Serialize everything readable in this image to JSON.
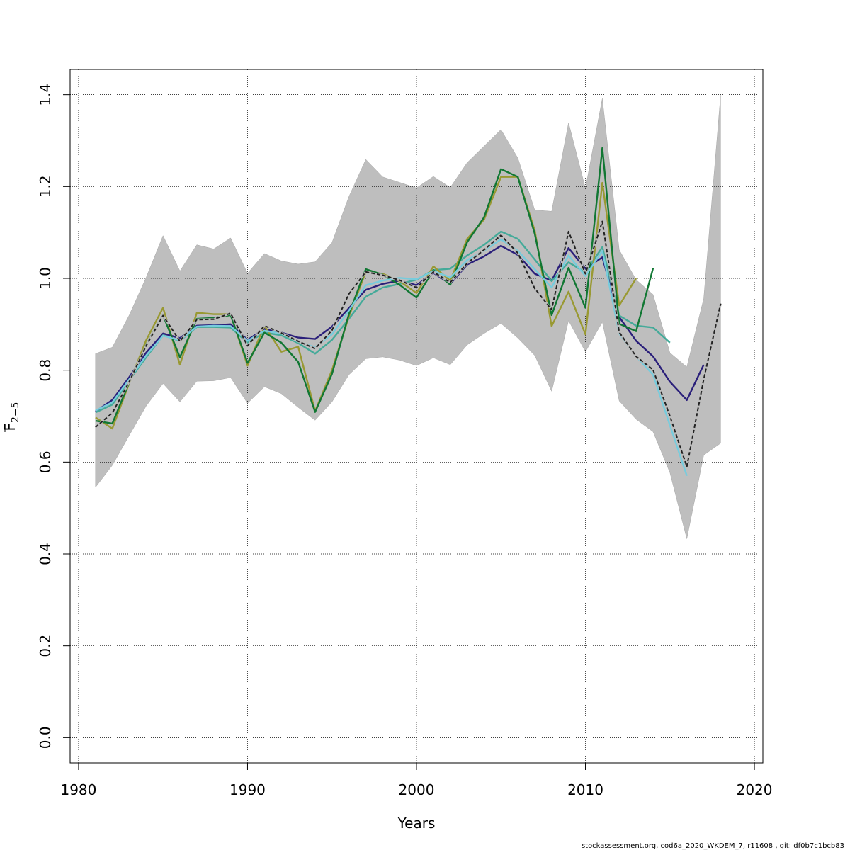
{
  "chart_data": {
    "type": "line",
    "xlabel": "Years",
    "ylabel": {
      "main": "F",
      "sub": "2−5"
    },
    "xlim": [
      1979.5,
      2020.5
    ],
    "ylim": [
      -0.055,
      1.455
    ],
    "xticks": [
      1980,
      1990,
      2000,
      2010,
      2020
    ],
    "yticks": [
      0.0,
      0.2,
      0.4,
      0.6,
      0.8,
      1.0,
      1.2,
      1.4
    ],
    "grid": true,
    "band": {
      "x": [
        1981,
        1982,
        1983,
        1984,
        1985,
        1986,
        1987,
        1988,
        1989,
        1990,
        1991,
        1992,
        1993,
        1994,
        1995,
        1996,
        1997,
        1998,
        1999,
        2000,
        2001,
        2002,
        2003,
        2004,
        2005,
        2006,
        2007,
        2008,
        2009,
        2010,
        2011,
        2012,
        2013,
        2014,
        2015,
        2016,
        2017,
        2018
      ],
      "lower": [
        0.545,
        0.593,
        0.658,
        0.722,
        0.771,
        0.731,
        0.776,
        0.777,
        0.784,
        0.728,
        0.764,
        0.749,
        0.719,
        0.691,
        0.731,
        0.79,
        0.825,
        0.829,
        0.822,
        0.81,
        0.827,
        0.812,
        0.855,
        0.88,
        0.902,
        0.87,
        0.832,
        0.754,
        0.908,
        0.84,
        0.905,
        0.733,
        0.693,
        0.666,
        0.577,
        0.433,
        0.615,
        0.641
      ],
      "upper": [
        0.836,
        0.85,
        0.92,
        1.002,
        1.093,
        1.016,
        1.073,
        1.064,
        1.088,
        1.011,
        1.054,
        1.038,
        1.031,
        1.036,
        1.078,
        1.178,
        1.259,
        1.221,
        1.209,
        1.197,
        1.222,
        1.198,
        1.252,
        1.288,
        1.324,
        1.262,
        1.149,
        1.146,
        1.339,
        1.196,
        1.392,
        1.062,
        0.997,
        0.965,
        0.838,
        0.807,
        0.956,
        1.399
      ]
    },
    "series": [
      {
        "color": "#2a1f7a",
        "dashed": false,
        "x": [
          1981,
          1982,
          1983,
          1984,
          1985,
          1986,
          1987,
          1988,
          1989,
          1990,
          1991,
          1992,
          1993,
          1994,
          1995,
          1996,
          1997,
          1998,
          1999,
          2000,
          2001,
          2002,
          2003,
          2004,
          2005,
          2006,
          2007,
          2008,
          2009,
          2010,
          2011,
          2012,
          2013,
          2014,
          2015,
          2016,
          2017
        ],
        "y": [
          0.71,
          0.735,
          0.785,
          0.838,
          0.88,
          0.87,
          0.897,
          0.898,
          0.9,
          0.866,
          0.89,
          0.882,
          0.871,
          0.868,
          0.895,
          0.935,
          0.975,
          0.988,
          0.995,
          0.985,
          1.012,
          0.988,
          1.03,
          1.048,
          1.071,
          1.051,
          1.01,
          0.995,
          1.066,
          1.021,
          1.046,
          0.916,
          0.864,
          0.83,
          0.775,
          0.735,
          0.812
        ]
      },
      {
        "color": "#44aa99",
        "dashed": false,
        "x": [
          1981,
          1982,
          1983,
          1984,
          1985,
          1986,
          1987,
          1988,
          1989,
          1990,
          1991,
          1992,
          1993,
          1994,
          1995,
          1996,
          1997,
          1998,
          1999,
          2000,
          2001,
          2002,
          2003,
          2004,
          2005,
          2006,
          2007,
          2008,
          2009,
          2010,
          2011,
          2012,
          2013,
          2014,
          2015
        ],
        "y": [
          0.708,
          0.725,
          0.778,
          0.828,
          0.876,
          0.864,
          0.894,
          0.894,
          0.893,
          0.86,
          0.882,
          0.876,
          0.859,
          0.836,
          0.866,
          0.912,
          0.96,
          0.98,
          0.988,
          0.997,
          1.018,
          1.021,
          1.05,
          1.073,
          1.102,
          1.086,
          1.041,
          0.994,
          1.035,
          1.013,
          1.068,
          0.919,
          0.897,
          0.893,
          0.86
        ]
      },
      {
        "color": "#999933",
        "dashed": false,
        "x": [
          1981,
          1982,
          1983,
          1984,
          1985,
          1986,
          1987,
          1988,
          1989,
          1990,
          1991,
          1992,
          1993,
          1994,
          1995,
          1996,
          1997,
          1998,
          1999,
          2000,
          2001,
          2002,
          2003,
          2004,
          2005,
          2006,
          2007,
          2008,
          2009,
          2010,
          2011,
          2012,
          2013
        ],
        "y": [
          0.697,
          0.673,
          0.772,
          0.865,
          0.936,
          0.812,
          0.925,
          0.922,
          0.922,
          0.81,
          0.897,
          0.84,
          0.851,
          0.711,
          0.8,
          0.917,
          1.014,
          1.01,
          0.994,
          0.968,
          1.026,
          0.995,
          1.086,
          1.128,
          1.221,
          1.221,
          1.104,
          0.896,
          0.971,
          0.878,
          1.208,
          0.941,
          1.0
        ]
      },
      {
        "color": "#117733",
        "dashed": false,
        "x": [
          1981,
          1982,
          1983,
          1984,
          1985,
          1986,
          1987,
          1988,
          1989,
          1990,
          1991,
          1992,
          1993,
          1994,
          1995,
          1996,
          1997,
          1998,
          1999,
          2000,
          2001,
          2002,
          2003,
          2004,
          2005,
          2006,
          2007,
          2008,
          2009,
          2010,
          2011,
          2012,
          2013,
          2014
        ],
        "y": [
          0.69,
          0.684,
          0.774,
          0.855,
          0.92,
          0.828,
          0.912,
          0.914,
          0.92,
          0.816,
          0.882,
          0.86,
          0.818,
          0.709,
          0.792,
          0.922,
          1.02,
          1.008,
          0.986,
          0.958,
          1.018,
          0.986,
          1.079,
          1.133,
          1.238,
          1.221,
          1.097,
          0.92,
          1.023,
          0.936,
          1.284,
          0.901,
          0.885,
          1.022
        ]
      },
      {
        "color": "#77ccdd",
        "dashed": false,
        "x": [
          1981,
          1982,
          1983,
          1984,
          1985,
          1986,
          1987,
          1988,
          1989,
          1990,
          1991,
          1992,
          1993,
          1994,
          1995,
          1996,
          1997,
          1998,
          1999,
          2000,
          2001,
          2002,
          2003,
          2004,
          2005,
          2006,
          2007,
          2008,
          2009,
          2010,
          2011,
          2012,
          2013,
          2014,
          2015,
          2016
        ],
        "y": [
          0.712,
          0.73,
          0.78,
          0.832,
          0.875,
          0.865,
          0.895,
          0.897,
          0.896,
          0.864,
          0.886,
          0.88,
          0.862,
          0.85,
          0.878,
          0.93,
          0.985,
          0.995,
          1.001,
          0.998,
          1.016,
          1.002,
          1.04,
          1.06,
          1.085,
          1.06,
          1.02,
          0.98,
          1.05,
          1.005,
          1.06,
          0.88,
          0.83,
          0.79,
          0.68,
          0.57
        ]
      },
      {
        "color": "#222222",
        "dashed": true,
        "x": [
          1981,
          1982,
          1983,
          1984,
          1985,
          1986,
          1987,
          1988,
          1989,
          1990,
          1991,
          1992,
          1993,
          1994,
          1995,
          1996,
          1997,
          1998,
          1999,
          2000,
          2001,
          2002,
          2003,
          2004,
          2005,
          2006,
          2007,
          2008,
          2009,
          2010,
          2011,
          2012,
          2013,
          2014,
          2015,
          2016,
          2017,
          2018
        ],
        "y": [
          0.676,
          0.707,
          0.775,
          0.853,
          0.919,
          0.863,
          0.91,
          0.911,
          0.924,
          0.853,
          0.897,
          0.881,
          0.863,
          0.847,
          0.887,
          0.966,
          1.014,
          1.007,
          0.996,
          0.98,
          1.014,
          0.991,
          1.033,
          1.062,
          1.094,
          1.055,
          0.978,
          0.932,
          1.102,
          1.01,
          1.124,
          0.883,
          0.83,
          0.801,
          0.7,
          0.59,
          0.78,
          0.945
        ]
      }
    ]
  },
  "footer": "stockassessment.org, cod6a_2020_WKDEM_7, r11608 , git: df0b7c1bcb83"
}
